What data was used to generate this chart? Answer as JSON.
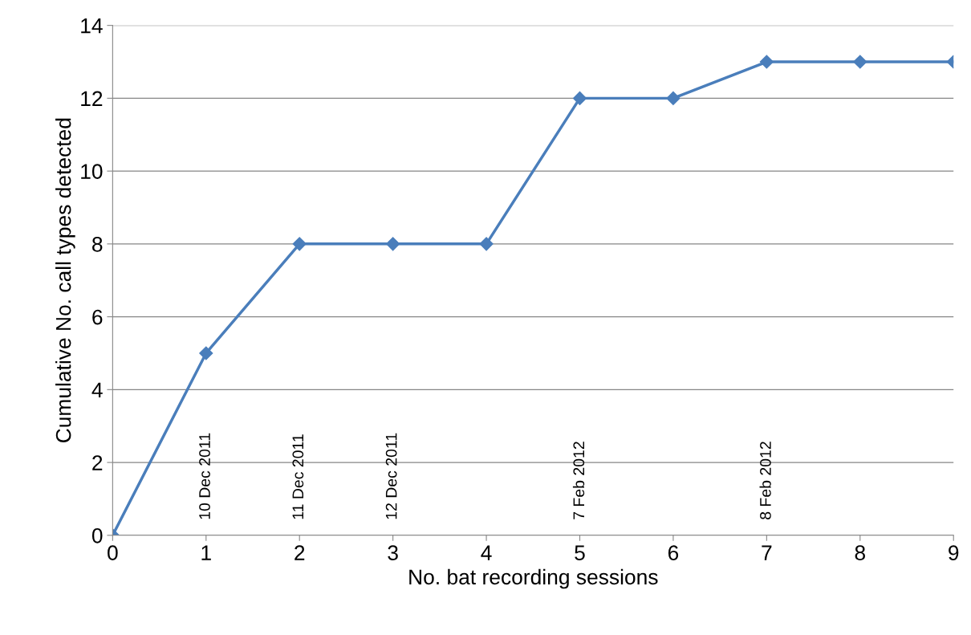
{
  "chart_data": {
    "type": "line",
    "xlabel": "No. bat recording sessions",
    "ylabel": "Cumulative No. call types detected",
    "x": [
      0,
      1,
      2,
      3,
      4,
      5,
      6,
      7,
      8,
      9
    ],
    "series": [
      {
        "color": "#4a7ebb",
        "values": [
          0,
          5,
          8,
          8,
          8,
          12,
          12,
          13,
          13,
          13
        ]
      }
    ],
    "xlim": [
      0,
      9
    ],
    "xticks": [
      0,
      1,
      2,
      3,
      4,
      5,
      6,
      7,
      8,
      9
    ],
    "ylim": [
      0,
      14
    ],
    "yticks": [
      0,
      2,
      4,
      6,
      8,
      10,
      12,
      14
    ],
    "grid": "y",
    "legend": false,
    "marker": "diamond",
    "line_style": "solid",
    "annotations": [
      "10 Dec 2011",
      "11 Dec 2011",
      "12 Dec 2011",
      "7 Feb 2012",
      "8 Feb 2012"
    ]
  }
}
